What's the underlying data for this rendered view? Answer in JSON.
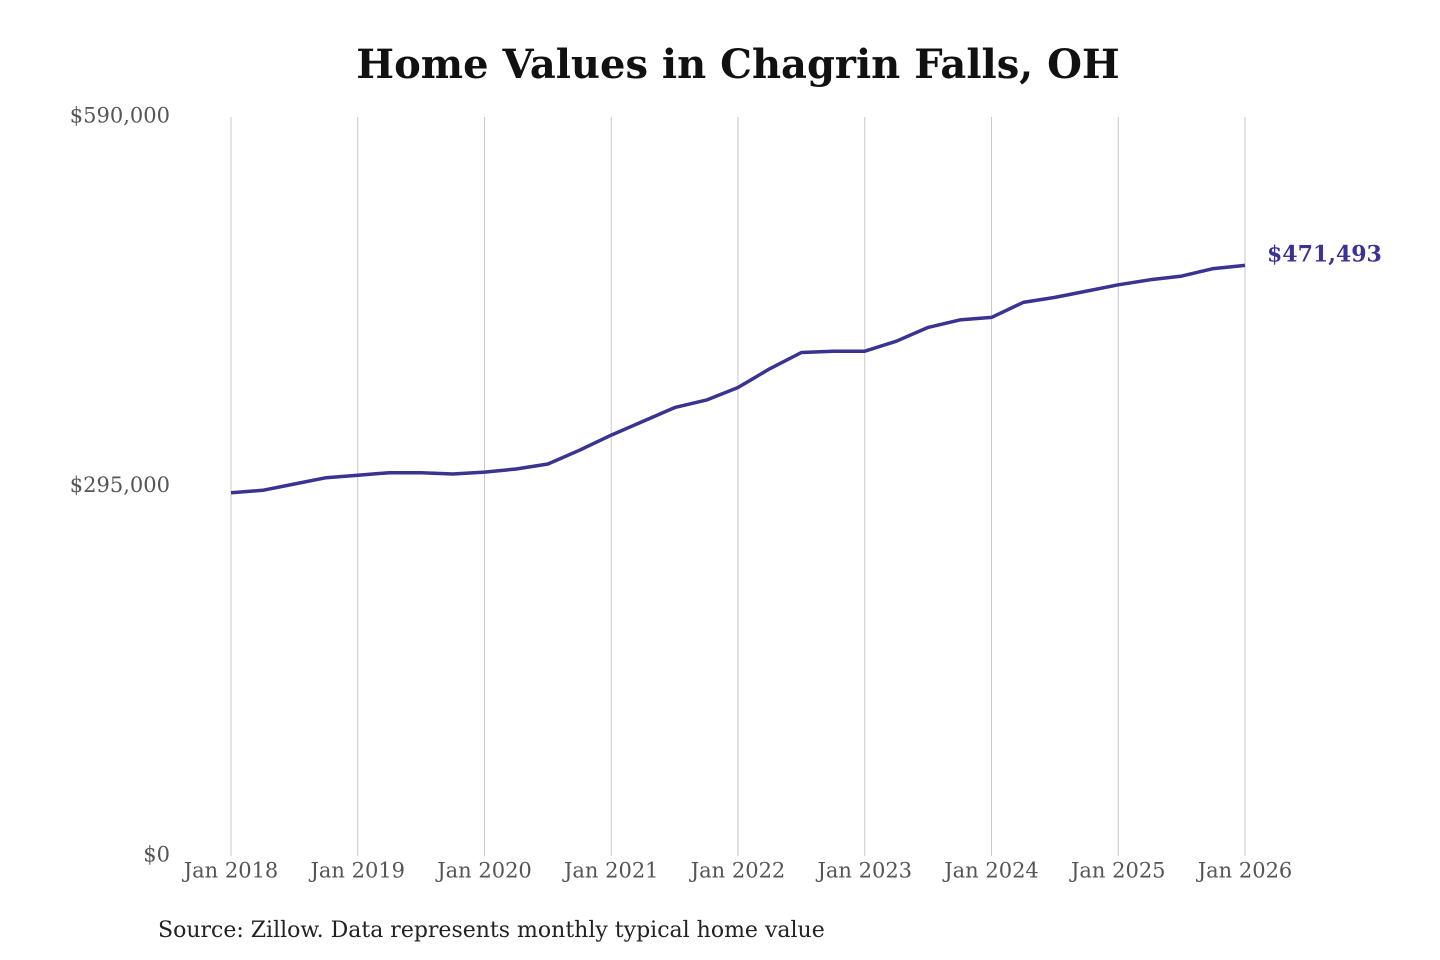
{
  "chart_data": {
    "type": "line",
    "title": "Home Values in Chagrin Falls, OH",
    "source": "Source: Zillow. Data represents monthly typical home value",
    "x": [
      "Jan 2018",
      "Apr 2018",
      "Jul 2018",
      "Oct 2018",
      "Jan 2019",
      "Apr 2019",
      "Jul 2019",
      "Oct 2019",
      "Jan 2020",
      "Apr 2020",
      "Jul 2020",
      "Oct 2020",
      "Jan 2021",
      "Apr 2021",
      "Jul 2021",
      "Oct 2021",
      "Jan 2022",
      "Apr 2022",
      "Jul 2022",
      "Oct 2022",
      "Jan 2023",
      "Apr 2023",
      "Jul 2023",
      "Oct 2023",
      "Jan 2024",
      "Apr 2024",
      "Jul 2024",
      "Oct 2024",
      "Jan 2025",
      "Apr 2025",
      "Jul 2025",
      "Oct 2025",
      "Jan 2026"
    ],
    "series": [
      {
        "name": "Chagrin Falls, OH",
        "color": "#3a3391",
        "values": [
          290000,
          292000,
          297000,
          302000,
          304000,
          306000,
          306000,
          305000,
          306500,
          309000,
          313000,
          324000,
          336000,
          347000,
          358000,
          364000,
          374000,
          389000,
          402000,
          403000,
          403000,
          411000,
          422000,
          428000,
          430000,
          442000,
          446000,
          451000,
          456000,
          460000,
          463000,
          469000,
          471493
        ],
        "value_labels": [
          null,
          null,
          null,
          null,
          null,
          null,
          null,
          null,
          null,
          null,
          null,
          null,
          null,
          null,
          null,
          null,
          null,
          null,
          null,
          null,
          null,
          null,
          null,
          null,
          null,
          null,
          null,
          null,
          null,
          null,
          null,
          null,
          "$471,493"
        ]
      }
    ],
    "xlim": [
      "Jan 2018",
      "Jan 2026"
    ],
    "xticks": [
      "Jan 2018",
      "Jan 2019",
      "Jan 2020",
      "Jan 2021",
      "Jan 2022",
      "Jan 2023",
      "Jan 2024",
      "Jan 2025",
      "Jan 2026"
    ],
    "ylim": [
      0,
      590000
    ],
    "yticks": [
      {
        "value": 0,
        "label": "$0"
      },
      {
        "value": 295000,
        "label": "$295,000"
      },
      {
        "value": 590000,
        "label": "$590,000"
      }
    ],
    "grid": "x"
  }
}
